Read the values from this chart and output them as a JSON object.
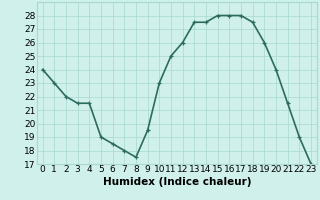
{
  "x": [
    0,
    1,
    2,
    3,
    4,
    5,
    6,
    7,
    8,
    9,
    10,
    11,
    12,
    13,
    14,
    15,
    16,
    17,
    18,
    19,
    20,
    21,
    22,
    23
  ],
  "y": [
    24,
    23,
    22,
    21.5,
    21.5,
    19,
    18.5,
    18,
    17.5,
    19.5,
    23,
    25,
    26,
    27.5,
    27.5,
    28,
    28,
    28,
    27.5,
    26,
    24,
    21.5,
    19,
    17
  ],
  "line_color": "#2d6b5e",
  "marker": "+",
  "marker_color": "#2d6b5e",
  "bg_color": "#cff0eb",
  "grid_color": "#a8d8d0",
  "xlabel": "Humidex (Indice chaleur)",
  "xlim": [
    -0.5,
    23.5
  ],
  "ylim": [
    17,
    29
  ],
  "yticks": [
    17,
    18,
    19,
    20,
    21,
    22,
    23,
    24,
    25,
    26,
    27,
    28
  ],
  "xticks": [
    0,
    1,
    2,
    3,
    4,
    5,
    6,
    7,
    8,
    9,
    10,
    11,
    12,
    13,
    14,
    15,
    16,
    17,
    18,
    19,
    20,
    21,
    22,
    23
  ],
  "xlabel_fontsize": 7.5,
  "tick_fontsize": 6.5,
  "linewidth": 1.2,
  "markersize": 3.5
}
